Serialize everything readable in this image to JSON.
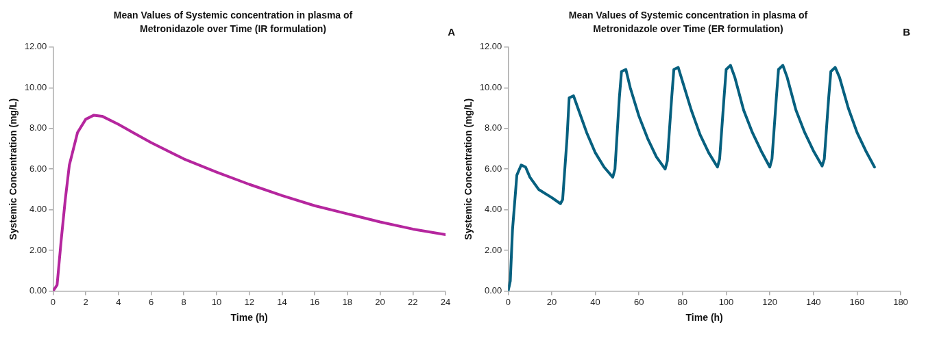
{
  "chart_data": [
    {
      "type": "line",
      "title": "Mean Values of Systemic concentration in plasma of Metronidazole over Time (IR formulation)",
      "xlabel": "Time (h)",
      "ylabel": "Systemic Concentration (mg/L)",
      "annotations": [
        "A"
      ],
      "grid": false,
      "legend": false,
      "marker": "none",
      "line_style": "solid",
      "xlim": [
        0,
        24
      ],
      "xticks": [
        0,
        2,
        4,
        6,
        8,
        10,
        12,
        14,
        16,
        18,
        20,
        22,
        24
      ],
      "ylim": [
        0,
        12
      ],
      "yticks": [
        {
          "value": 0,
          "label": "0.00"
        },
        {
          "value": 2,
          "label": "2.00"
        },
        {
          "value": 4,
          "label": "4.00"
        },
        {
          "value": 6,
          "label": "6.00"
        },
        {
          "value": 8,
          "label": "8.00"
        },
        {
          "value": 10,
          "label": "10.00"
        },
        {
          "value": 12,
          "label": "12.00"
        }
      ],
      "series": [
        {
          "color": "#b5269e",
          "x": [
            0,
            0.25,
            0.5,
            0.75,
            1,
            1.5,
            2,
            2.5,
            3,
            4,
            5,
            6,
            8,
            10,
            12,
            14,
            16,
            18,
            20,
            22,
            24
          ],
          "values": [
            0,
            0.3,
            2.5,
            4.5,
            6.2,
            7.8,
            8.45,
            8.65,
            8.6,
            8.2,
            7.75,
            7.3,
            6.5,
            5.85,
            5.25,
            4.7,
            4.2,
            3.8,
            3.4,
            3.05,
            2.78
          ]
        }
      ]
    },
    {
      "type": "line",
      "title": "Mean Values of Systemic concentration in plasma of Metronidazole over Time (ER formulation)",
      "xlabel": "Time (h)",
      "ylabel": "Systemic Concentration (mg/L)",
      "annotations": [
        "B"
      ],
      "grid": false,
      "legend": false,
      "marker": "none",
      "line_style": "solid",
      "xlim": [
        0,
        180
      ],
      "xticks": [
        0,
        20,
        40,
        60,
        80,
        100,
        120,
        140,
        160,
        180
      ],
      "ylim": [
        0,
        12
      ],
      "yticks": [
        {
          "value": 0,
          "label": "0.00"
        },
        {
          "value": 2,
          "label": "2.00"
        },
        {
          "value": 4,
          "label": "4.00"
        },
        {
          "value": 6,
          "label": "6.00"
        },
        {
          "value": 8,
          "label": "8.00"
        },
        {
          "value": 10,
          "label": "10.00"
        },
        {
          "value": 12,
          "label": "12.00"
        }
      ],
      "series": [
        {
          "color": "#06607f",
          "x": [
            0,
            1,
            2,
            4,
            6,
            8,
            10,
            14,
            20,
            24,
            25,
            27,
            28,
            30,
            32,
            36,
            40,
            44,
            48,
            49,
            51,
            52,
            54,
            56,
            60,
            64,
            68,
            72,
            73,
            75,
            76,
            78,
            80,
            84,
            88,
            92,
            96,
            97,
            99,
            100,
            102,
            104,
            108,
            112,
            116,
            120,
            121,
            123,
            124,
            126,
            128,
            132,
            136,
            140,
            144,
            145,
            147,
            148,
            150,
            152,
            156,
            160,
            164,
            168
          ],
          "values": [
            0,
            0.5,
            3,
            5.7,
            6.2,
            6.1,
            5.6,
            5.0,
            4.6,
            4.3,
            4.5,
            7.5,
            9.5,
            9.6,
            9.0,
            7.8,
            6.8,
            6.1,
            5.6,
            6.0,
            9.5,
            10.8,
            10.9,
            10.0,
            8.6,
            7.5,
            6.6,
            6.0,
            6.4,
            9.5,
            10.9,
            11.0,
            10.3,
            8.9,
            7.7,
            6.8,
            6.1,
            6.5,
            9.5,
            10.9,
            11.1,
            10.5,
            8.9,
            7.8,
            6.9,
            6.1,
            6.5,
            9.5,
            10.9,
            11.1,
            10.5,
            8.9,
            7.8,
            6.9,
            6.15,
            6.5,
            9.5,
            10.8,
            11.0,
            10.5,
            9.0,
            7.8,
            6.9,
            6.1
          ]
        }
      ]
    }
  ]
}
